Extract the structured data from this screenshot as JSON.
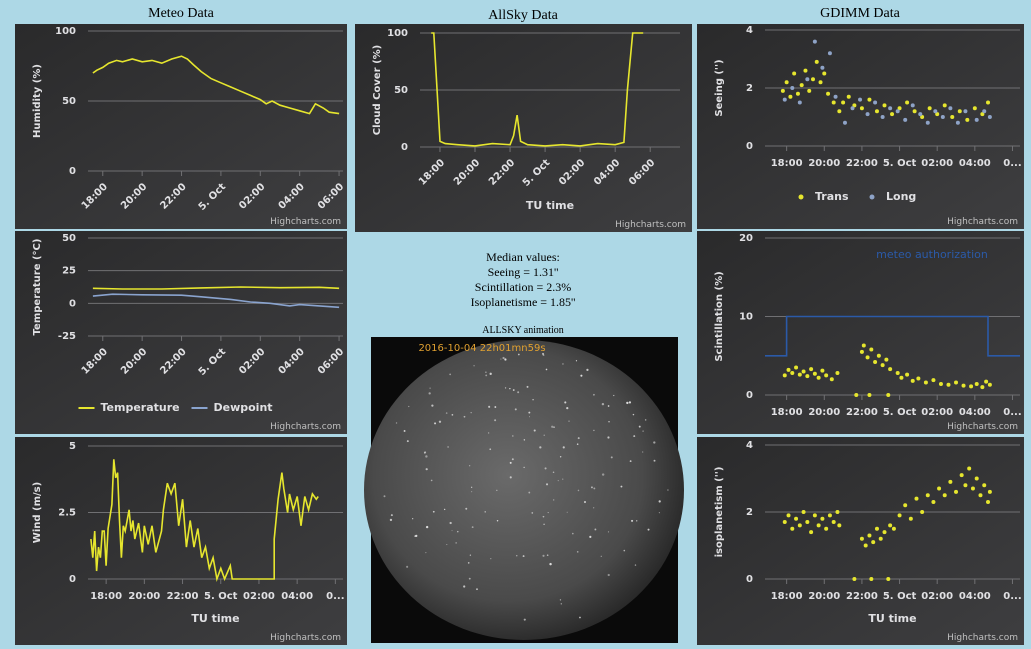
{
  "headers": [
    "Meteo Data",
    "AllSky Data",
    "GDIMM Data"
  ],
  "median": {
    "title": "Median values:",
    "lines": [
      "Seeing = 1.31''",
      "Scintillation = 2.3%",
      "Isoplanetisme = 1.85''"
    ]
  },
  "allsky": {
    "title": "ALLSKY animation",
    "timestamp": "2016-10-04 22h01mn59s"
  },
  "chart_data": [
    {
      "type": "line",
      "y_label": "Humidity (%)",
      "credit": "Highcharts.com",
      "grid": true,
      "xtick_rotation": -45,
      "xlim": [
        17.25,
        30.2
      ],
      "ylim": [
        0,
        100
      ],
      "yticks": [
        0,
        50,
        100
      ],
      "xticks": [
        {
          "value": 18,
          "label": "18:00"
        },
        {
          "value": 20,
          "label": "20:00"
        },
        {
          "value": 22,
          "label": "22:00"
        },
        {
          "value": 24,
          "label": "5. Oct"
        },
        {
          "value": 26,
          "label": "02:00"
        },
        {
          "value": 28,
          "label": "04:00"
        },
        {
          "value": 30,
          "label": "06:00"
        }
      ],
      "series": [
        {
          "color": "#e6e62e",
          "x": [
            17.5,
            17.7,
            18.0,
            18.3,
            18.7,
            19.0,
            19.5,
            20.0,
            20.5,
            21.0,
            21.5,
            22.0,
            22.3,
            22.6,
            23.0,
            23.5,
            24.0,
            24.5,
            25.0,
            25.5,
            26.0,
            26.3,
            26.6,
            27.0,
            27.5,
            28.0,
            28.5,
            28.8,
            29.2,
            29.5,
            30.0
          ],
          "values": [
            70,
            72,
            74,
            77,
            79,
            78,
            80,
            78,
            79,
            77,
            80,
            82,
            80,
            76,
            71,
            66,
            63,
            60,
            57,
            54,
            51,
            48,
            50,
            47,
            45,
            43,
            41,
            48,
            45,
            42,
            41
          ]
        }
      ]
    },
    {
      "type": "line",
      "y_label": "Temperature (°C)",
      "credit": "Highcharts.com",
      "grid": true,
      "xtick_rotation": -45,
      "legend": "bottom",
      "xlim": [
        17.25,
        30.2
      ],
      "ylim": [
        -25,
        50
      ],
      "yticks": [
        -25,
        0,
        25,
        50
      ],
      "xticks": [
        {
          "value": 18,
          "label": "18:00"
        },
        {
          "value": 20,
          "label": "20:00"
        },
        {
          "value": 22,
          "label": "22:00"
        },
        {
          "value": 24,
          "label": "5. Oct"
        },
        {
          "value": 26,
          "label": "02:00"
        },
        {
          "value": 28,
          "label": "04:00"
        },
        {
          "value": 30,
          "label": "06:00"
        }
      ],
      "series": [
        {
          "name": "Temperature",
          "color": "#e6e62e",
          "x": [
            17.5,
            19,
            21,
            23,
            25,
            27,
            29,
            30
          ],
          "values": [
            11.5,
            11,
            11,
            11.8,
            12.5,
            12,
            12.3,
            11.5
          ]
        },
        {
          "name": "Dewpoint",
          "color": "#8aa4cf",
          "x": [
            17.5,
            18.5,
            20,
            22,
            23,
            24.5,
            25.5,
            26.5,
            27.5,
            28,
            29,
            30
          ],
          "values": [
            5.5,
            7,
            6.5,
            6.2,
            5,
            3,
            1,
            0,
            -2,
            -1,
            -2,
            -3
          ]
        }
      ]
    },
    {
      "type": "line",
      "y_label": "Wind (m/s)",
      "x_label": "TU time",
      "credit": "Highcharts.com",
      "grid": true,
      "xlim": [
        17.05,
        30.4
      ],
      "ylim": [
        0,
        5
      ],
      "yticks": [
        0,
        2.5,
        5
      ],
      "xticks": [
        {
          "value": 18,
          "label": "18:00"
        },
        {
          "value": 20,
          "label": "20:00"
        },
        {
          "value": 22,
          "label": "22:00"
        },
        {
          "value": 24,
          "label": "5. Oct"
        },
        {
          "value": 26,
          "label": "02:00"
        },
        {
          "value": 28,
          "label": "04:00"
        },
        {
          "value": 30,
          "label": "0..."
        }
      ],
      "series": [
        {
          "color": "#e6e62e",
          "x": [
            17.2,
            17.3,
            17.4,
            17.5,
            17.6,
            17.7,
            17.8,
            17.9,
            18.0,
            18.1,
            18.3,
            18.4,
            18.5,
            18.6,
            18.7,
            18.8,
            18.9,
            19.0,
            19.2,
            19.3,
            19.4,
            19.5,
            19.7,
            19.9,
            20.0,
            20.2,
            20.4,
            20.6,
            20.9,
            21.0,
            21.2,
            21.4,
            21.6,
            21.8,
            22.0,
            22.2,
            22.4,
            22.6,
            22.8,
            23.0,
            23.2,
            23.4,
            23.6,
            23.8,
            24.0,
            24.2,
            24.5,
            24.6,
            26.8,
            26.8,
            27.0,
            27.2,
            27.3,
            27.5,
            27.6,
            27.8,
            28.0,
            28.2,
            28.4,
            28.6,
            28.8,
            29.0,
            29.1
          ],
          "values": [
            1.5,
            0.8,
            1.8,
            0.3,
            1.2,
            0.8,
            1.8,
            1.8,
            0.5,
            1.9,
            2.8,
            4.5,
            3.8,
            4.0,
            2.2,
            0.8,
            2.0,
            1.8,
            2.6,
            1.8,
            2.2,
            1.5,
            2.1,
            1.0,
            2.0,
            1.3,
            2.0,
            1.0,
            1.8,
            2.6,
            3.6,
            3.2,
            3.6,
            2.0,
            3.0,
            1.2,
            2.2,
            1.2,
            1.9,
            0.8,
            1.2,
            0.4,
            0.8,
            0,
            0.4,
            0,
            0.5,
            0,
            0,
            1.5,
            3.0,
            4.0,
            3.4,
            2.5,
            3.2,
            2.6,
            3.1,
            2.0,
            3.1,
            2.6,
            3.2,
            3.0,
            3.1
          ]
        }
      ]
    },
    {
      "type": "line",
      "y_label": "Cloud Cover (%)",
      "x_label": "TU time",
      "credit": "Highcharts.com",
      "grid": true,
      "xtick_rotation": -45,
      "xlim": [
        16.86,
        31.7
      ],
      "ylim": [
        0,
        100
      ],
      "yticks": [
        0,
        50,
        100
      ],
      "xticks": [
        {
          "value": 18,
          "label": "18:00"
        },
        {
          "value": 20,
          "label": "20:00"
        },
        {
          "value": 22,
          "label": "22:00"
        },
        {
          "value": 24,
          "label": "5. Oct"
        },
        {
          "value": 26,
          "label": "02:00"
        },
        {
          "value": 28,
          "label": "04:00"
        },
        {
          "value": 30,
          "label": "06:00"
        }
      ],
      "series": [
        {
          "color": "#e6e62e",
          "x": [
            17.5,
            17.65,
            18.0,
            18.3,
            19,
            20,
            21,
            22,
            22.2,
            22.4,
            22.6,
            23,
            24,
            25,
            26,
            27,
            28,
            28.5,
            28.7,
            29.0,
            29.6
          ],
          "values": [
            100,
            100,
            5,
            3,
            2,
            1,
            3,
            2,
            10,
            28,
            5,
            2,
            1,
            2,
            1,
            3,
            2,
            4,
            50,
            100,
            100
          ]
        }
      ]
    },
    {
      "type": "scatter",
      "y_label": "Seeing ('')",
      "credit": "Highcharts.com",
      "grid": true,
      "legend": "bottom",
      "xlim": [
        16.85,
        30.4
      ],
      "ylim": [
        0,
        4
      ],
      "yticks": [
        0,
        2,
        4
      ],
      "xticks": [
        {
          "value": 18,
          "label": "18:00"
        },
        {
          "value": 20,
          "label": "20:00"
        },
        {
          "value": 22,
          "label": "22:00"
        },
        {
          "value": 24,
          "label": "5. Oct"
        },
        {
          "value": 26,
          "label": "02:00"
        },
        {
          "value": 28,
          "label": "04:00"
        },
        {
          "value": 30,
          "label": "0..."
        }
      ],
      "series": [
        {
          "name": "Trans",
          "color": "#e6e62e",
          "x": [
            17.8,
            18.0,
            18.2,
            18.4,
            18.6,
            18.8,
            19.0,
            19.2,
            19.4,
            19.6,
            19.8,
            20.0,
            20.2,
            20.5,
            20.8,
            21.0,
            21.3,
            21.6,
            22.0,
            22.4,
            22.8,
            23.2,
            23.6,
            24.0,
            24.4,
            24.8,
            25.2,
            25.6,
            26.0,
            26.4,
            26.8,
            27.2,
            27.6,
            28.0,
            28.4,
            28.7
          ],
          "values": [
            1.9,
            2.2,
            1.7,
            2.5,
            1.8,
            2.1,
            2.6,
            1.9,
            2.3,
            2.9,
            2.2,
            2.5,
            1.8,
            1.5,
            1.2,
            1.5,
            1.7,
            1.4,
            1.3,
            1.6,
            1.2,
            1.4,
            1.1,
            1.3,
            1.5,
            1.2,
            1.0,
            1.3,
            1.1,
            1.4,
            1.0,
            1.2,
            0.9,
            1.3,
            1.1,
            1.5
          ]
        },
        {
          "name": "Long",
          "color": "#8ea3c7",
          "x": [
            17.9,
            18.3,
            18.7,
            19.1,
            19.5,
            19.9,
            20.3,
            20.6,
            21.1,
            21.5,
            21.9,
            22.3,
            22.7,
            23.1,
            23.5,
            23.9,
            24.3,
            24.7,
            25.1,
            25.5,
            25.9,
            26.3,
            26.7,
            27.1,
            27.5,
            28.1,
            28.5,
            28.8
          ],
          "values": [
            1.6,
            2.0,
            1.5,
            2.3,
            3.6,
            2.7,
            3.2,
            1.7,
            0.8,
            1.3,
            1.6,
            1.1,
            1.5,
            1.0,
            1.3,
            1.2,
            0.9,
            1.4,
            1.1,
            0.8,
            1.2,
            1.0,
            1.3,
            0.8,
            1.2,
            0.9,
            1.2,
            1.0
          ]
        }
      ]
    },
    {
      "type": "scatter",
      "y_label": "Scintillation (%)",
      "credit": "Highcharts.com",
      "grid": true,
      "xlim": [
        16.85,
        30.4
      ],
      "ylim": [
        0,
        20
      ],
      "yticks": [
        0,
        10,
        20
      ],
      "xticks": [
        {
          "value": 18,
          "label": "18:00"
        },
        {
          "value": 20,
          "label": "20:00"
        },
        {
          "value": 22,
          "label": "22:00"
        },
        {
          "value": 24,
          "label": "5. Oct"
        },
        {
          "value": 26,
          "label": "02:00"
        },
        {
          "value": 28,
          "label": "04:00"
        },
        {
          "value": 30,
          "label": "0..."
        }
      ],
      "series": [
        {
          "name": "meteo authorization",
          "type": "line",
          "color": "#2b5aa8",
          "x": [
            16.85,
            18,
            18,
            28.7,
            28.7,
            30.4
          ],
          "values": [
            5,
            5,
            10,
            10,
            5,
            5
          ]
        },
        {
          "color": "#e6e62e",
          "x": [
            17.9,
            18.1,
            18.3,
            18.5,
            18.7,
            18.9,
            19.1,
            19.3,
            19.5,
            19.7,
            19.9,
            20.1,
            20.4,
            20.7,
            21.7,
            22.0,
            22.1,
            22.3,
            22.4,
            22.5,
            22.7,
            22.9,
            23.1,
            23.3,
            23.4,
            23.5,
            23.9,
            24.1,
            24.4,
            24.7,
            25.0,
            25.4,
            25.8,
            26.2,
            26.6,
            27.0,
            27.4,
            27.8,
            28.1,
            28.4,
            28.6,
            28.8
          ],
          "values": [
            2.5,
            3.2,
            2.8,
            3.5,
            2.6,
            3.0,
            2.4,
            3.3,
            2.7,
            2.2,
            3.1,
            2.5,
            2.0,
            2.8,
            0,
            5.5,
            6.3,
            4.8,
            0,
            5.8,
            4.2,
            5.0,
            3.8,
            4.5,
            0,
            3.3,
            2.8,
            2.2,
            2.6,
            1.8,
            2.1,
            1.6,
            1.9,
            1.4,
            1.3,
            1.6,
            1.2,
            1.1,
            1.4,
            1.0,
            1.7,
            1.3
          ]
        }
      ]
    },
    {
      "type": "scatter",
      "y_label": "isoplanetism ('')",
      "x_label": "TU time",
      "credit": "Highcharts.com",
      "grid": true,
      "xlim": [
        16.85,
        30.4
      ],
      "ylim": [
        0,
        4
      ],
      "yticks": [
        0,
        2,
        4
      ],
      "xticks": [
        {
          "value": 18,
          "label": "18:00"
        },
        {
          "value": 20,
          "label": "20:00"
        },
        {
          "value": 22,
          "label": "22:00"
        },
        {
          "value": 24,
          "label": "5. Oct"
        },
        {
          "value": 26,
          "label": "02:00"
        },
        {
          "value": 28,
          "label": "04:00"
        },
        {
          "value": 30,
          "label": "0..."
        }
      ],
      "series": [
        {
          "color": "#e6e62e",
          "x": [
            17.9,
            18.1,
            18.3,
            18.5,
            18.7,
            18.9,
            19.1,
            19.3,
            19.5,
            19.7,
            19.9,
            20.1,
            20.3,
            20.5,
            20.7,
            20.8,
            21.6,
            22.0,
            22.2,
            22.4,
            22.5,
            22.6,
            22.8,
            23.0,
            23.2,
            23.4,
            23.5,
            23.7,
            24.0,
            24.3,
            24.6,
            24.9,
            25.2,
            25.5,
            25.8,
            26.1,
            26.4,
            26.7,
            27.0,
            27.3,
            27.5,
            27.7,
            27.9,
            28.1,
            28.3,
            28.5,
            28.7,
            28.8
          ],
          "values": [
            1.7,
            1.9,
            1.5,
            1.8,
            1.6,
            2.0,
            1.7,
            1.4,
            1.9,
            1.6,
            1.8,
            1.5,
            1.9,
            1.7,
            2.0,
            1.6,
            0,
            1.2,
            1.0,
            1.3,
            0,
            1.1,
            1.5,
            1.2,
            1.4,
            0,
            1.6,
            1.5,
            1.9,
            2.2,
            1.8,
            2.4,
            2.0,
            2.5,
            2.3,
            2.7,
            2.5,
            2.9,
            2.6,
            3.1,
            2.8,
            3.3,
            2.7,
            3.0,
            2.5,
            2.8,
            2.3,
            2.6
          ]
        }
      ]
    }
  ]
}
